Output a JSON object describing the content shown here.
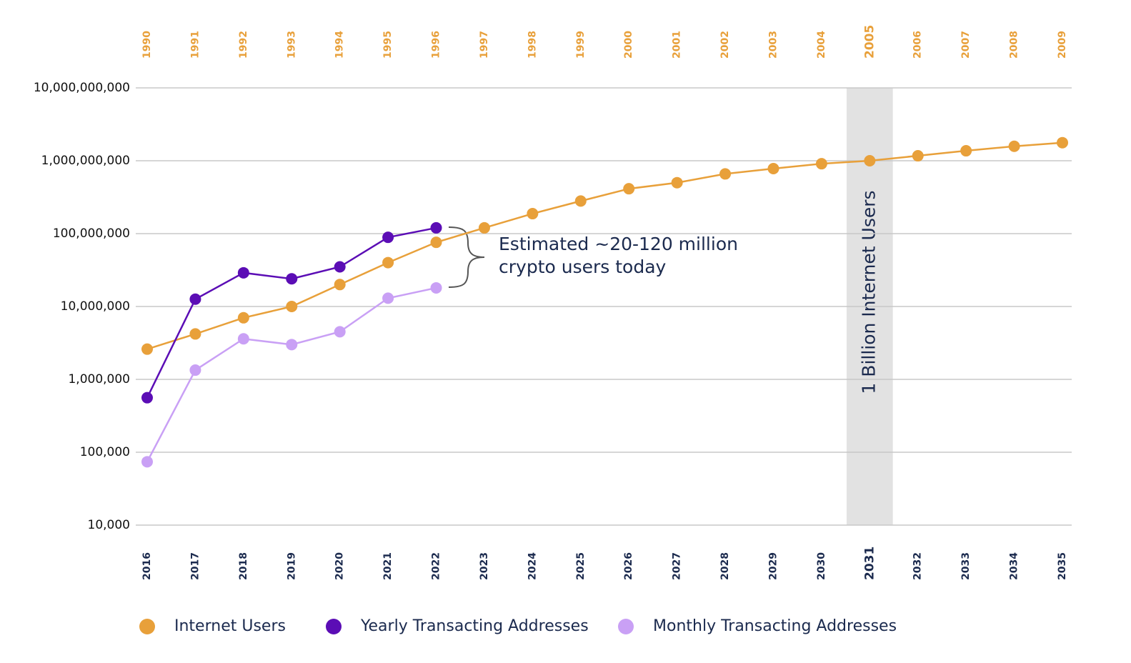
{
  "chart_data": {
    "type": "line",
    "log": true,
    "grid": true,
    "categories": [
      "2016",
      "2017",
      "2018",
      "2019",
      "2020",
      "2021",
      "2022",
      "2023",
      "2024",
      "2025",
      "2026",
      "2027",
      "2028",
      "2029",
      "2030",
      "2031",
      "2032",
      "2033",
      "2034",
      "2035"
    ],
    "x2_categories": [
      "1990",
      "1991",
      "1992",
      "1993",
      "1994",
      "1995",
      "1996",
      "1997",
      "1998",
      "1999",
      "2000",
      "2001",
      "2002",
      "2003",
      "2004",
      "2005",
      "2006",
      "2007",
      "2008",
      "2009"
    ],
    "series": [
      {
        "name": "Internet Users",
        "color": "#e8a03a",
        "values": [
          2600000,
          4200000,
          7000000,
          10000000,
          20000000,
          40000000,
          76000000,
          120000000,
          188000000,
          280000000,
          413000000,
          500000000,
          660000000,
          780000000,
          910000000,
          1000000000,
          1170000000,
          1370000000,
          1580000000,
          1770000000
        ]
      },
      {
        "name": "Yearly Transacting Addresses",
        "color": "#5b0db5",
        "values": [
          560000,
          12600000,
          29000000,
          24000000,
          35000000,
          89000000,
          120000000,
          null,
          null,
          null,
          null,
          null,
          null,
          null,
          null,
          null,
          null,
          null,
          null,
          null
        ]
      },
      {
        "name": "Monthly Transacting Addresses",
        "color": "#c9a0f5",
        "values": [
          74000,
          1340000,
          3600000,
          3000000,
          4500000,
          13000000,
          18000000,
          null,
          null,
          null,
          null,
          null,
          null,
          null,
          null,
          null,
          null,
          null,
          null,
          null
        ]
      }
    ],
    "ylim": [
      10000,
      10000000000
    ],
    "yticks": [
      {
        "value": 10000,
        "label": "10,000"
      },
      {
        "value": 100000,
        "label": "100,000"
      },
      {
        "value": 1000000,
        "label": "1,000,000"
      },
      {
        "value": 10000000,
        "label": "10,000,000"
      },
      {
        "value": 100000000,
        "label": "100,000,000"
      },
      {
        "value": 1000000000,
        "label": "1,000,000,000"
      },
      {
        "value": 10000000000,
        "label": "10,000,000,000"
      }
    ],
    "annotation": [
      "Estimated ~20-120 million",
      "crypto users today"
    ],
    "highlight": {
      "x": "2031",
      "label": "1 Billion Internet Users"
    }
  }
}
